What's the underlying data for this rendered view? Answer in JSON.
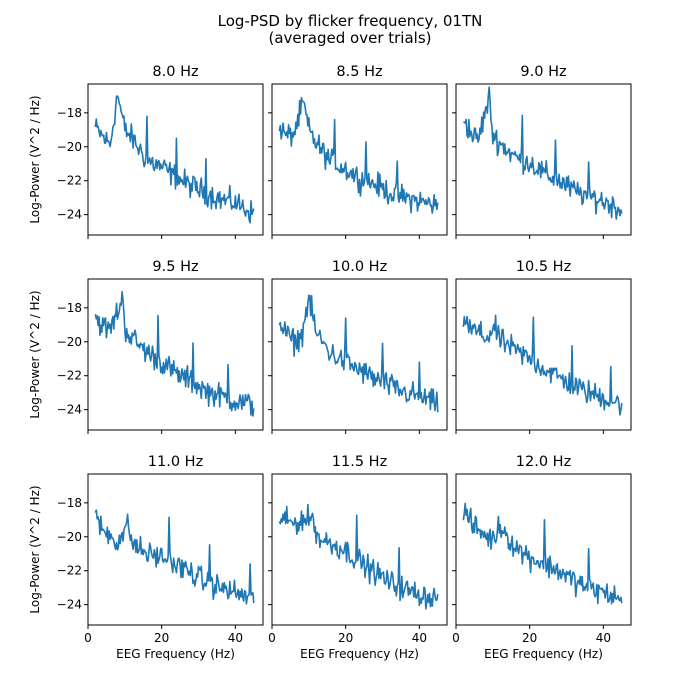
{
  "figure": {
    "title_line1": "Log-PSD by flicker frequency, 01TN",
    "title_line2": "(averaged over trials)"
  },
  "chart_data": {
    "type": "line",
    "shared_x": true,
    "shared_y": true,
    "grid": false,
    "layout": "3x3 grid",
    "xlabel": "EEG Frequency (Hz)",
    "ylabel": "Log-Power (V^2 / Hz)",
    "xlim": [
      0,
      47.5
    ],
    "ylim": [
      -25.2,
      -16.3
    ],
    "xticks": [
      0,
      20,
      40
    ],
    "yticks": [
      -18,
      -20,
      -22,
      -24
    ],
    "line_color": "#1f77b4",
    "panels": [
      {
        "title": "8.0 Hz",
        "stim": 8.0,
        "x": [
          2,
          4,
          6,
          8,
          10,
          12,
          16,
          20,
          24,
          28,
          32,
          36,
          40,
          44,
          45
        ],
        "y": [
          -18.9,
          -19.4,
          -19.9,
          -16.9,
          -19.0,
          -19.5,
          -20.8,
          -21.2,
          -21.8,
          -22.3,
          -22.7,
          -23.1,
          -23.3,
          -23.8,
          -24.0
        ]
      },
      {
        "title": "8.5 Hz",
        "stim": 8.5,
        "x": [
          2,
          4,
          6,
          8.5,
          10,
          12,
          16,
          20,
          24,
          28,
          32,
          36,
          40,
          44,
          45
        ],
        "y": [
          -18.8,
          -19.4,
          -19.2,
          -17.4,
          -19.0,
          -19.8,
          -20.9,
          -21.3,
          -21.9,
          -22.2,
          -22.7,
          -23.0,
          -23.2,
          -23.4,
          -23.6
        ]
      },
      {
        "title": "9.0 Hz",
        "stim": 9.0,
        "x": [
          2,
          4,
          6,
          9,
          10,
          12,
          16,
          20,
          24,
          28,
          32,
          36,
          40,
          44,
          45
        ],
        "y": [
          -18.2,
          -19.2,
          -19.6,
          -17.1,
          -19.3,
          -19.8,
          -20.6,
          -20.9,
          -21.6,
          -22.0,
          -22.6,
          -22.9,
          -23.2,
          -23.6,
          -23.7
        ]
      },
      {
        "title": "9.5 Hz",
        "stim": 9.5,
        "x": [
          2,
          4,
          6,
          9.5,
          10,
          12,
          16,
          20,
          24,
          28,
          32,
          36,
          40,
          44,
          45
        ],
        "y": [
          -18.5,
          -19.1,
          -19.3,
          -17.4,
          -19.2,
          -19.8,
          -20.6,
          -21.2,
          -21.9,
          -22.3,
          -22.9,
          -23.2,
          -23.5,
          -23.7,
          -23.8
        ]
      },
      {
        "title": "10.0 Hz",
        "stim": 10.0,
        "x": [
          2,
          4,
          6,
          8,
          10,
          12,
          16,
          20,
          24,
          28,
          32,
          36,
          40,
          44,
          45
        ],
        "y": [
          -18.8,
          -19.6,
          -20.0,
          -19.7,
          -17.4,
          -19.5,
          -20.7,
          -21.2,
          -21.7,
          -22.2,
          -22.6,
          -23.0,
          -23.2,
          -23.6,
          -23.8
        ]
      },
      {
        "title": "10.5 Hz",
        "stim": 10.5,
        "x": [
          2,
          4,
          6,
          8,
          10.5,
          12,
          16,
          20,
          24,
          28,
          32,
          36,
          40,
          44,
          45
        ],
        "y": [
          -18.6,
          -19.3,
          -19.4,
          -19.8,
          -19.2,
          -19.9,
          -20.5,
          -21.0,
          -21.6,
          -22.1,
          -22.6,
          -23.0,
          -23.3,
          -23.6,
          -23.7
        ]
      },
      {
        "title": "11.0 Hz",
        "stim": 11.0,
        "x": [
          2,
          4,
          6,
          8,
          11,
          12,
          16,
          20,
          24,
          28,
          32,
          36,
          40,
          44,
          45
        ],
        "y": [
          -18.9,
          -19.6,
          -19.9,
          -20.3,
          -19.3,
          -20.4,
          -21.0,
          -21.2,
          -21.7,
          -22.1,
          -22.7,
          -23.0,
          -23.3,
          -23.6,
          -23.8
        ]
      },
      {
        "title": "11.5 Hz",
        "stim": 11.5,
        "x": [
          2,
          4,
          6,
          8,
          11.5,
          12,
          16,
          20,
          24,
          28,
          32,
          36,
          40,
          44,
          45
        ],
        "y": [
          -18.8,
          -19.1,
          -19.2,
          -19.0,
          -18.9,
          -20.0,
          -20.4,
          -20.8,
          -21.5,
          -22.1,
          -22.7,
          -23.1,
          -23.4,
          -23.6,
          -23.7
        ]
      },
      {
        "title": "12.0 Hz",
        "stim": 12.0,
        "x": [
          2,
          4,
          6,
          8,
          10,
          12,
          16,
          20,
          24,
          28,
          32,
          36,
          40,
          44,
          45
        ],
        "y": [
          -18.3,
          -19.2,
          -19.6,
          -19.9,
          -20.2,
          -19.3,
          -20.6,
          -21.2,
          -21.6,
          -22.0,
          -22.6,
          -23.0,
          -23.3,
          -23.6,
          -23.8
        ]
      }
    ]
  }
}
